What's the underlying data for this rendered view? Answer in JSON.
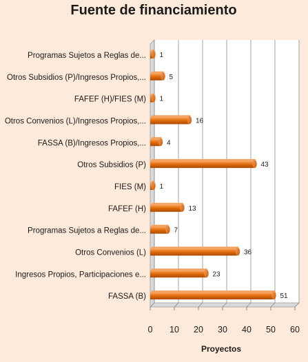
{
  "chart_data": {
    "type": "bar",
    "orientation": "horizontal",
    "title": "Fuente de financiamiento",
    "xlabel": "Proyectos",
    "ylabel": "",
    "xlim": [
      0,
      60
    ],
    "xticks": [
      "0",
      "10",
      "20",
      "30",
      "40",
      "50",
      "60"
    ],
    "grid": true,
    "legend": "none",
    "bar_color": "#e36c0a",
    "background_color": "#fdeada",
    "categories": [
      "Programas Sujetos a Reglas de...",
      "Otros Subsidios (P)/Ingresos Propios,...",
      "FAFEF (H)/FIES (M)",
      "Otros Convenios (L)/Ingresos Propios,...",
      "FASSA (B)/Ingresos Propios,...",
      "Otros Subsidios (P)",
      "FIES (M)",
      "FAFEF (H)",
      "Programas Sujetos a Reglas de...",
      "Otros Convenios (L)",
      "Ingresos Propios, Participaciones e...",
      "FASSA (B)"
    ],
    "values": [
      1,
      5,
      1,
      16,
      4,
      43,
      1,
      13,
      7,
      36,
      23,
      51
    ],
    "value_labels": [
      "1",
      "5",
      "1",
      "16",
      "4",
      "43",
      "1",
      "13",
      "7",
      "36",
      "23",
      "51"
    ]
  }
}
